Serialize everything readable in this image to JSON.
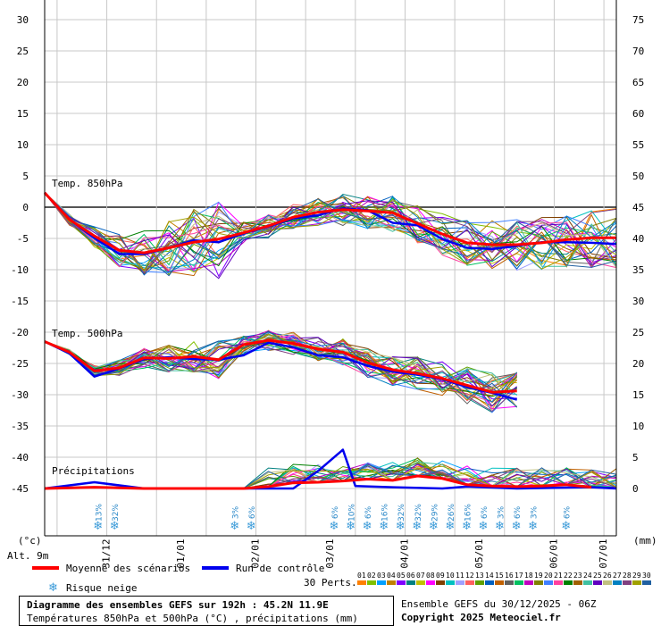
{
  "chart_data": {
    "type": "line",
    "y_left": {
      "ticks": [
        30,
        25,
        20,
        15,
        10,
        5,
        0,
        -5,
        -10,
        -15,
        -20,
        -25,
        -30,
        -35,
        -40,
        -45
      ],
      "unit": "(°c)"
    },
    "y_right": {
      "ticks": [
        75,
        70,
        65,
        60,
        55,
        50,
        45,
        40,
        35,
        30,
        25,
        20,
        15,
        10,
        5,
        0
      ],
      "unit": "(mm)"
    },
    "x_ticks": [
      "31/12",
      "01/01",
      "02/01",
      "03/01",
      "04/01",
      "05/01",
      "06/01",
      "07/01"
    ],
    "annotations": {
      "t850": "Temp. 850hPa",
      "t500": "Temp. 500hPa",
      "precip": "Précipitations",
      "alt": "Alt. 9m"
    },
    "series": [
      {
        "name": "Moyenne des scénarios",
        "color": "#ff0000",
        "t850": [
          [
            0,
            2.3
          ],
          [
            12,
            -2
          ],
          [
            24,
            -4.6
          ],
          [
            36,
            -6.9
          ],
          [
            48,
            -7.3
          ],
          [
            60,
            -6.5
          ],
          [
            72,
            -5.6
          ],
          [
            84,
            -5.1
          ],
          [
            96,
            -4.1
          ],
          [
            108,
            -3
          ],
          [
            120,
            -1.6
          ],
          [
            132,
            -0.8
          ],
          [
            144,
            -0.4
          ],
          [
            156,
            -0.6
          ],
          [
            168,
            -0.9
          ],
          [
            180,
            -2.6
          ],
          [
            192,
            -4.3
          ],
          [
            204,
            -5.7
          ],
          [
            216,
            -6
          ],
          [
            228,
            -6
          ],
          [
            240,
            -5.7
          ],
          [
            252,
            -5.2
          ],
          [
            264,
            -4.9
          ],
          [
            276,
            -4.9
          ]
        ],
        "t500": [
          [
            0,
            -21.5
          ],
          [
            12,
            -23.2
          ],
          [
            24,
            -26.2
          ],
          [
            36,
            -25.7
          ],
          [
            48,
            -24.1
          ],
          [
            60,
            -24.2
          ],
          [
            72,
            -23.9
          ],
          [
            84,
            -24.4
          ],
          [
            96,
            -22
          ],
          [
            108,
            -21.3
          ],
          [
            120,
            -21.8
          ],
          [
            132,
            -22.7
          ],
          [
            144,
            -23.2
          ],
          [
            156,
            -24.9
          ],
          [
            168,
            -26
          ],
          [
            180,
            -26.6
          ],
          [
            192,
            -27.4
          ],
          [
            204,
            -28.5
          ],
          [
            216,
            -29.6
          ],
          [
            228,
            -29.4
          ]
        ],
        "precip": [
          [
            0,
            0
          ],
          [
            24,
            0.2
          ],
          [
            48,
            0
          ],
          [
            96,
            0
          ],
          [
            108,
            0.3
          ],
          [
            120,
            0.9
          ],
          [
            132,
            1
          ],
          [
            144,
            1.2
          ],
          [
            156,
            1.5
          ],
          [
            168,
            1.3
          ],
          [
            180,
            2
          ],
          [
            192,
            1.6
          ],
          [
            204,
            0.6
          ],
          [
            216,
            0.4
          ],
          [
            228,
            0.3
          ],
          [
            240,
            0.4
          ],
          [
            252,
            0.6
          ],
          [
            264,
            0.2
          ]
        ]
      },
      {
        "name": "Run de contrôle",
        "color": "#0000ee",
        "t850": [
          [
            0,
            2.3
          ],
          [
            12,
            -2
          ],
          [
            24,
            -4.9
          ],
          [
            36,
            -7.5
          ],
          [
            48,
            -7.5
          ],
          [
            60,
            -6.5
          ],
          [
            72,
            -5.3
          ],
          [
            84,
            -5.6
          ],
          [
            96,
            -4.2
          ],
          [
            108,
            -3.1
          ],
          [
            120,
            -1.8
          ],
          [
            132,
            -1.3
          ],
          [
            144,
            -0.2
          ],
          [
            156,
            -0.5
          ],
          [
            168,
            -2.5
          ],
          [
            180,
            -2.9
          ],
          [
            192,
            -5.1
          ],
          [
            204,
            -6.5
          ],
          [
            216,
            -6.7
          ],
          [
            228,
            -6.2
          ],
          [
            240,
            -5.6
          ],
          [
            252,
            -5.6
          ],
          [
            264,
            -5.7
          ],
          [
            276,
            -5.9
          ]
        ],
        "t500": [
          [
            0,
            -21.5
          ],
          [
            12,
            -23.4
          ],
          [
            24,
            -27.1
          ],
          [
            36,
            -25.8
          ],
          [
            48,
            -24.3
          ],
          [
            60,
            -24
          ],
          [
            72,
            -24.3
          ],
          [
            84,
            -24.4
          ],
          [
            96,
            -23.7
          ],
          [
            108,
            -21.7
          ],
          [
            120,
            -22.4
          ],
          [
            132,
            -23.7
          ],
          [
            144,
            -24
          ],
          [
            156,
            -25.4
          ],
          [
            168,
            -26.3
          ],
          [
            180,
            -26.8
          ],
          [
            192,
            -27.5
          ],
          [
            204,
            -28.8
          ],
          [
            216,
            -29.7
          ],
          [
            228,
            -30.8
          ]
        ],
        "precip": [
          [
            0,
            0
          ],
          [
            24,
            1
          ],
          [
            48,
            0
          ],
          [
            96,
            0
          ],
          [
            120,
            0
          ],
          [
            132,
            2.8
          ],
          [
            144,
            6.2
          ],
          [
            150,
            0.4
          ],
          [
            168,
            0.2
          ],
          [
            192,
            0
          ],
          [
            204,
            0.3
          ],
          [
            228,
            0
          ],
          [
            264,
            0.2
          ],
          [
            276,
            0
          ]
        ]
      }
    ],
    "snow_risk": [
      {
        "x": 24,
        "pct": "13%"
      },
      {
        "x": 32,
        "pct": "32%"
      },
      {
        "x": 90,
        "pct": "3%"
      },
      {
        "x": 98,
        "pct": "6%"
      },
      {
        "x": 138,
        "pct": "6%"
      },
      {
        "x": 146,
        "pct": "10%"
      },
      {
        "x": 154,
        "pct": "6%"
      },
      {
        "x": 162,
        "pct": "16%"
      },
      {
        "x": 170,
        "pct": "32%"
      },
      {
        "x": 178,
        "pct": "32%"
      },
      {
        "x": 186,
        "pct": "29%"
      },
      {
        "x": 194,
        "pct": "26%"
      },
      {
        "x": 202,
        "pct": "16%"
      },
      {
        "x": 210,
        "pct": "6%"
      },
      {
        "x": 218,
        "pct": "3%"
      },
      {
        "x": 226,
        "pct": "6%"
      },
      {
        "x": 234,
        "pct": "3%"
      },
      {
        "x": 250,
        "pct": "6%"
      }
    ],
    "legend": {
      "mean": "Moyenne des scénarios",
      "control": "Run de contrôle",
      "snow": "Risque neige",
      "perts": "30 Perts.",
      "members": [
        "01",
        "02",
        "03",
        "04",
        "05",
        "06",
        "07",
        "08",
        "09",
        "10",
        "11",
        "12",
        "13",
        "14",
        "15",
        "16",
        "17",
        "18",
        "19",
        "20",
        "21",
        "22",
        "23",
        "24",
        "25",
        "26",
        "27",
        "28",
        "29",
        "30"
      ],
      "colors": [
        "#ff8000",
        "#80c000",
        "#00a0ff",
        "#c08000",
        "#8000ff",
        "#008080",
        "#c0c000",
        "#ff00ff",
        "#804000",
        "#00c0c0",
        "#a0a0ff",
        "#ff6060",
        "#60a000",
        "#0060c0",
        "#c06000",
        "#606060",
        "#00c060",
        "#c000c0",
        "#808000",
        "#4080ff",
        "#ff40a0",
        "#008000",
        "#a06000",
        "#40c0a0",
        "#6000c0",
        "#c0c080",
        "#0080c0",
        "#804080",
        "#a0a000",
        "#2060a0"
      ]
    }
  },
  "footer": {
    "title": "Diagramme des ensembles GEFS sur 192h : 45.2N 11.9E",
    "subtitle": "Températures 850hPa et 500hPa (°C) , précipitations (mm)",
    "ensemble": "Ensemble GEFS du 30/12/2025 - 06Z",
    "copyright": "Copyright 2025 Meteociel.fr"
  }
}
